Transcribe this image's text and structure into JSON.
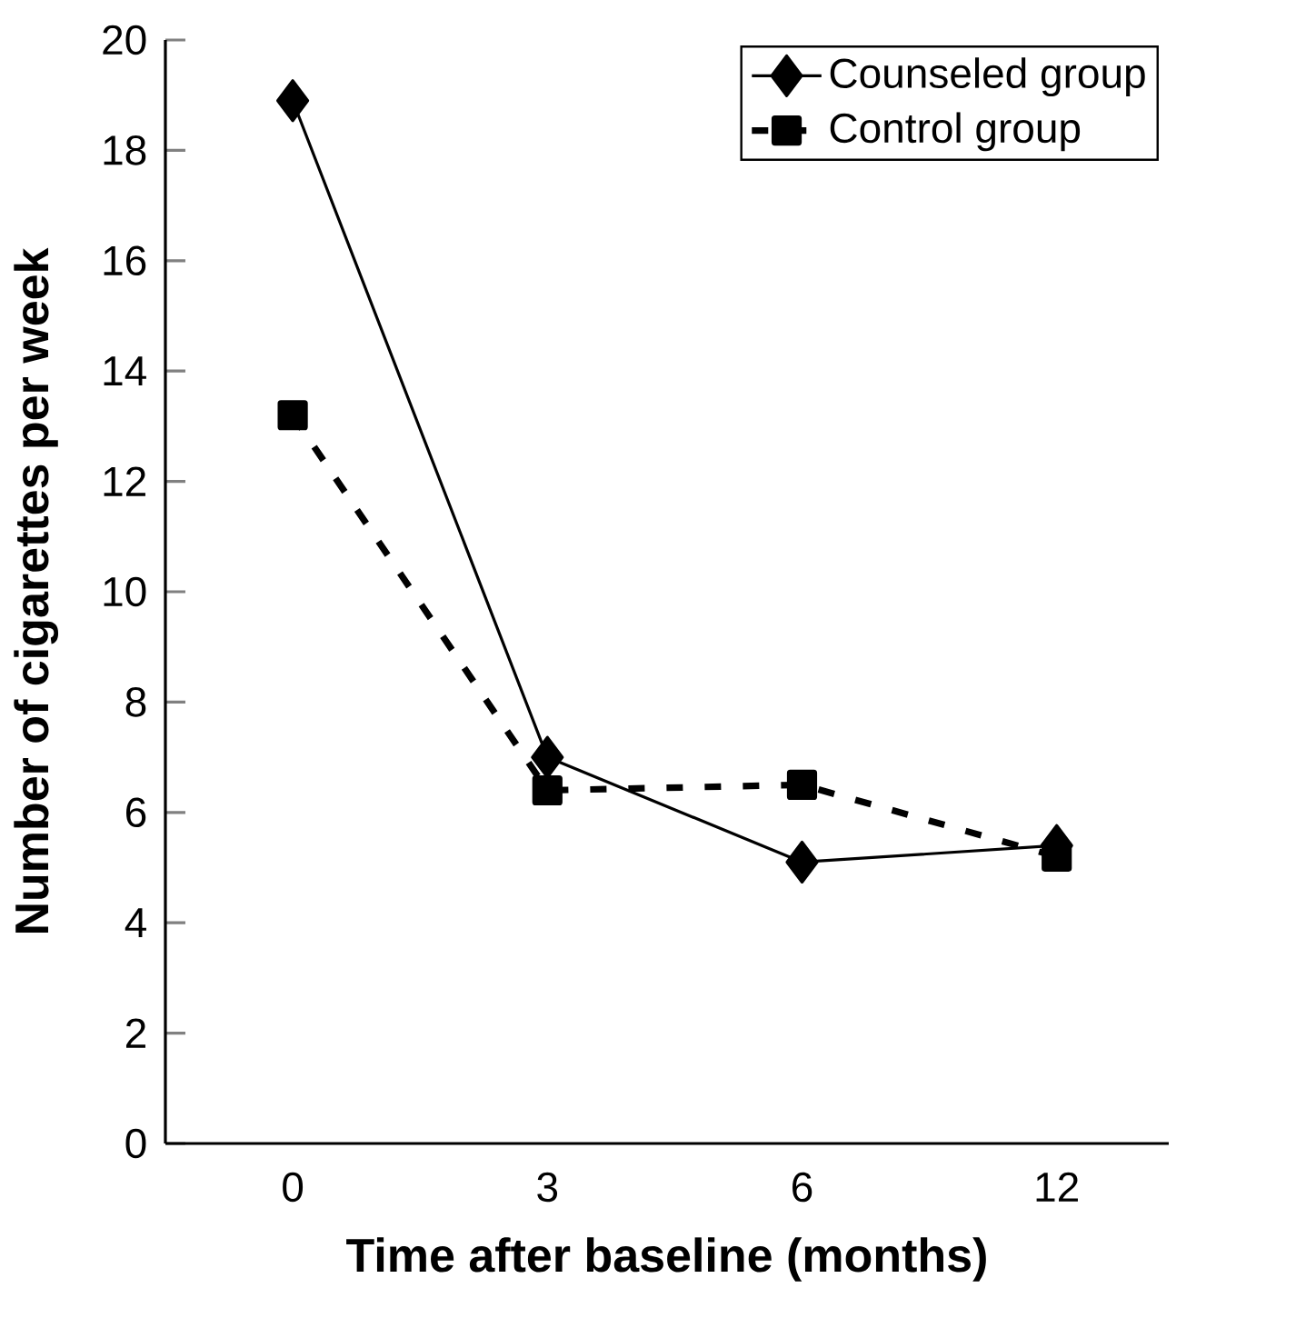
{
  "chart_data": {
    "type": "line",
    "xlabel": "Time after baseline (months)",
    "ylabel": "Number of cigarettes per week",
    "categories": [
      "0",
      "3",
      "6",
      "12"
    ],
    "series": [
      {
        "name": "Counseled group",
        "color": "#000000",
        "values": [
          18.9,
          7.0,
          5.1,
          5.4
        ],
        "marker": "diamond",
        "line_style": "solid"
      },
      {
        "name": "Control group",
        "color": "#000000",
        "values": [
          13.2,
          6.4,
          6.5,
          5.2
        ],
        "marker": "square",
        "line_style": "dashed"
      }
    ],
    "ylim": [
      0,
      20
    ],
    "yticks": [
      0,
      2,
      4,
      6,
      8,
      10,
      12,
      14,
      16,
      18,
      20
    ],
    "legend": "top right",
    "grid": false
  }
}
